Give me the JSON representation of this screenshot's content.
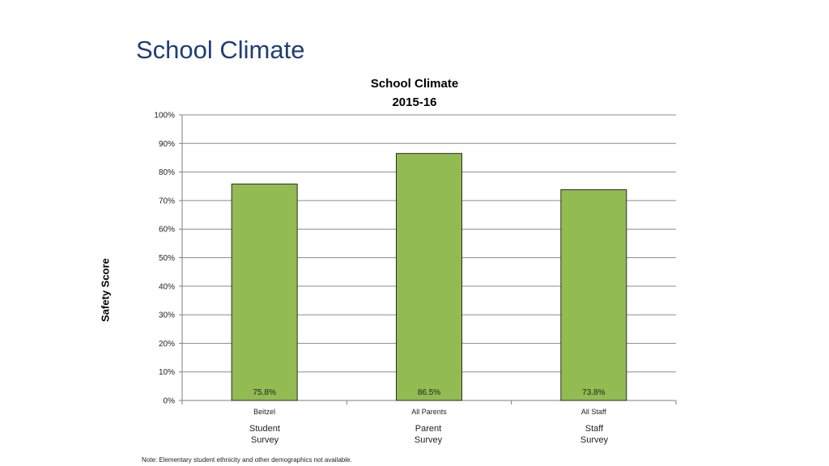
{
  "slide": {
    "title": "School Climate",
    "note": "Note: Elementary student ethnicity and other demographics not available."
  },
  "chart_data": {
    "type": "bar",
    "title": "School Climate",
    "subtitle": "2015-16",
    "ylabel": "Safety Score",
    "xlabel": "",
    "categories": [
      "Beitzel",
      "All Parents",
      "All Staff"
    ],
    "values": [
      75.8,
      86.5,
      73.8
    ],
    "data_labels": [
      "75.8%",
      "86.5%",
      "73.8%"
    ],
    "group_labels": [
      {
        "line1": "Student",
        "line2": "Survey"
      },
      {
        "line1": "Parent",
        "line2": "Survey"
      },
      {
        "line1": "Staff",
        "line2": "Survey"
      }
    ],
    "ylim": [
      0,
      100
    ],
    "yticks": [
      0,
      10,
      20,
      30,
      40,
      50,
      60,
      70,
      80,
      90,
      100
    ],
    "ytick_labels": [
      "0%",
      "10%",
      "20%",
      "30%",
      "40%",
      "50%",
      "60%",
      "70%",
      "80%",
      "90%",
      "100%"
    ],
    "grid": true,
    "legend": "none",
    "colors": {
      "bar": "#92bb51",
      "bar_edge": "#2b2b2b",
      "grid": "#8c8c8c"
    }
  }
}
